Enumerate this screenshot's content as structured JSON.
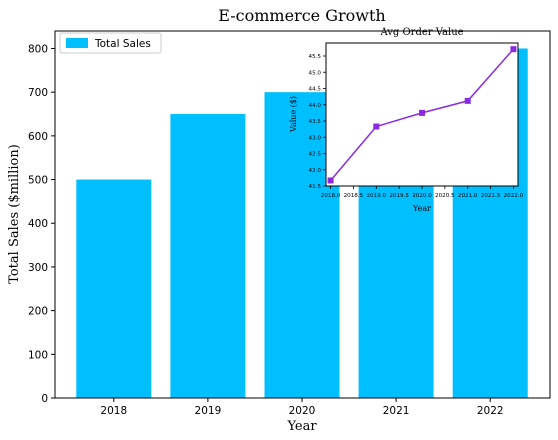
{
  "chart_data": [
    {
      "type": "bar",
      "title": "E-commerce Growth",
      "xlabel": "Year",
      "ylabel": "Total Sales ($million)",
      "categories": [
        "2018",
        "2019",
        "2020",
        "2021",
        "2022"
      ],
      "series": [
        {
          "name": "Total Sales",
          "values": [
            500,
            650,
            700,
            750,
            800
          ],
          "color": "#00bfff"
        }
      ],
      "ylim": [
        0,
        840
      ],
      "yticks": [
        0,
        100,
        200,
        300,
        400,
        500,
        600,
        700,
        800
      ],
      "grid": false,
      "legend": "top-left"
    },
    {
      "type": "line",
      "title": "Avg Order Value",
      "xlabel": "Year",
      "ylabel": "Value ($)",
      "x": [
        2018,
        2019,
        2020,
        2021,
        2022
      ],
      "series": [
        {
          "values": [
            41.67,
            43.33,
            43.75,
            44.12,
            45.71
          ],
          "color": "#8a2be2",
          "marker": "square"
        }
      ],
      "xlim": [
        2017.9,
        2022.1
      ],
      "ylim": [
        41.5,
        45.9
      ],
      "xticks": [
        "2018.0",
        "2018.5",
        "2019.0",
        "2019.5",
        "2020.0",
        "2020.5",
        "2021.0",
        "2021.5",
        "2022.0"
      ],
      "yticks": [
        "41.5",
        "42.0",
        "42.5",
        "43.0",
        "43.5",
        "44.0",
        "44.5",
        "45.0",
        "45.5"
      ],
      "grid": false,
      "legend": "none"
    }
  ]
}
